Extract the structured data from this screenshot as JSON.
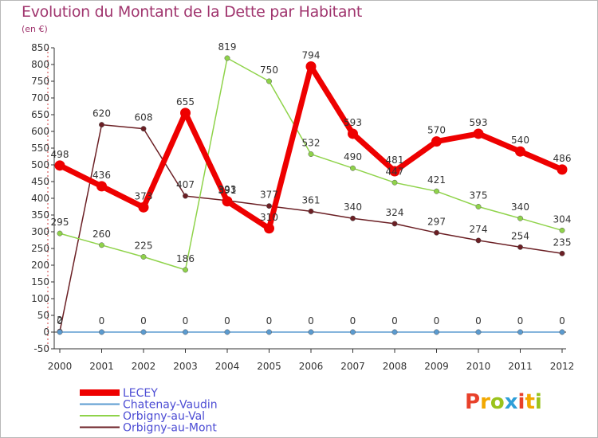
{
  "title": "Evolution du Montant de la Dette par Habitant",
  "subtitle": "(en €)",
  "logo": {
    "text": "Proxiti",
    "letters": [
      {
        "ch": "P",
        "color": "#e8402a"
      },
      {
        "ch": "r",
        "color": "#f2a800"
      },
      {
        "ch": "o",
        "color": "#9ac31c"
      },
      {
        "ch": "x",
        "color": "#2f9fd8"
      },
      {
        "ch": "i",
        "color": "#e8402a"
      },
      {
        "ch": "t",
        "color": "#f2a800"
      },
      {
        "ch": "i",
        "color": "#9ac31c"
      }
    ]
  },
  "chart_data": {
    "type": "line",
    "x": [
      "2000",
      "2001",
      "2002",
      "2003",
      "2004",
      "2005",
      "2006",
      "2007",
      "2008",
      "2009",
      "2010",
      "2011",
      "2012"
    ],
    "ylim": [
      -50,
      850
    ],
    "yticks": [
      -50,
      0,
      50,
      100,
      150,
      200,
      250,
      300,
      350,
      400,
      450,
      500,
      550,
      600,
      650,
      700,
      750,
      800,
      850
    ],
    "grid": false,
    "legend_position": "bottom-left",
    "series": [
      {
        "name": "Orbigny-au-Mont",
        "color": "#6b1f24",
        "values": [
          2,
          620,
          608,
          407,
          393,
          377,
          361,
          340,
          324,
          297,
          274,
          254,
          235
        ]
      },
      {
        "name": "Orbigny-au-Val",
        "color": "#8fd34a",
        "values": [
          295,
          260,
          225,
          186,
          819,
          750,
          532,
          490,
          447,
          421,
          375,
          340,
          304
        ]
      },
      {
        "name": "Chatenay-Vaudin",
        "color": "#5b9bd0",
        "values": [
          0,
          0,
          0,
          0,
          0,
          0,
          0,
          0,
          0,
          0,
          0,
          0,
          0
        ]
      },
      {
        "name": "LECEY",
        "color": "#ee0000",
        "values": [
          498,
          436,
          373,
          655,
          391,
          310,
          794,
          593,
          481,
          570,
          593,
          540,
          486
        ]
      }
    ],
    "legend": [
      "LECEY",
      "Chatenay-Vaudin",
      "Orbigny-au-Val",
      "Orbigny-au-Mont"
    ]
  }
}
